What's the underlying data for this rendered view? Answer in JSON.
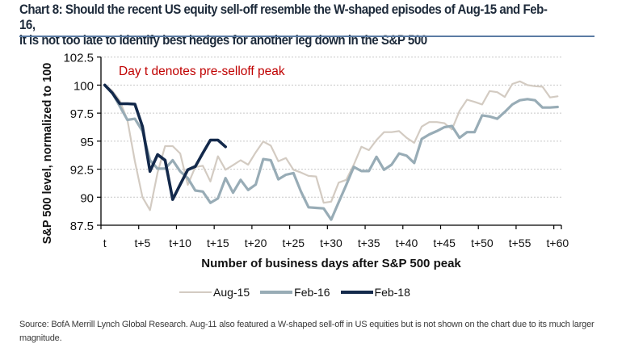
{
  "title": {
    "line1": "Chart 8: Should the recent US equity sell-off resemble the W-shaped episodes of Aug-15 and Feb-16,",
    "line2": "it is not too late to identify best hedges for another leg down in the S&P 500"
  },
  "source": "Source: BofA Merrill Lynch Global Research.  Aug-11 also featured a W-shaped sell-off in US equities but is not shown on the chart due to its much larger magnitude.",
  "colors": {
    "aug15": "#d3cbc2",
    "feb16": "#98acb6",
    "feb18": "#13294b",
    "annotation": "#c00000",
    "title_rule": "#5b7ba3"
  },
  "chart_data": {
    "type": "line",
    "title": "Chart 8: Should the recent US equity sell-off resemble the W-shaped episodes of Aug-15 and Feb-16, it is not too late to identify best hedges for another leg down in the S&P 500",
    "xlabel": "Number of business days after S&P 500 peak",
    "ylabel": "S&P 500 level, normalized to 100",
    "ylim": [
      87.5,
      102.5
    ],
    "yticks": [
      87.5,
      90,
      92.5,
      95,
      97.5,
      100,
      102.5
    ],
    "ytick_labels": [
      "87.5",
      "90",
      "92.5",
      "95",
      "97.5",
      "100",
      "102.5"
    ],
    "x_days": 61,
    "xtick_positions": [
      0,
      5,
      10,
      15,
      20,
      25,
      30,
      35,
      40,
      45,
      50,
      55,
      60
    ],
    "xtick_labels": [
      "t",
      "t+5",
      "t+10",
      "t+15",
      "t+20",
      "t+25",
      "t+30",
      "t+35",
      "t+40",
      "t+45",
      "t+50",
      "t+55",
      "t+60"
    ],
    "grid": "horizontal dotted",
    "legend_position": "bottom",
    "annotation": "Day t denotes pre-selloff peak",
    "series": [
      {
        "name": "Aug-15",
        "values": [
          100,
          99.5,
          98.6,
          96.9,
          93.2,
          90.0,
          88.85,
          92.2,
          94.56,
          94.56,
          93.9,
          91.1,
          92.7,
          92.8,
          91.4,
          93.65,
          92.45,
          92.86,
          93.3,
          92.9,
          94.0,
          94.97,
          94.6,
          93.2,
          93.5,
          92.45,
          92.2,
          91.9,
          91.85,
          89.5,
          89.6,
          91.3,
          91.55,
          92.9,
          94.5,
          94.2,
          95.1,
          95.8,
          95.8,
          95.9,
          95.3,
          94.85,
          96.3,
          96.7,
          96.7,
          96.6,
          96.05,
          97.7,
          98.7,
          98.5,
          98.27,
          99.47,
          99.37,
          98.94,
          100.1,
          100.33,
          100.0,
          99.9,
          99.86,
          98.9,
          99.0
        ]
      },
      {
        "name": "Feb-16",
        "values": [
          100,
          99.3,
          98.1,
          96.9,
          97.0,
          95.9,
          93.3,
          92.55,
          92.55,
          93.3,
          92.3,
          91.7,
          90.6,
          90.5,
          89.5,
          89.9,
          91.7,
          90.4,
          91.55,
          90.65,
          91.13,
          93.4,
          93.3,
          91.6,
          92.0,
          92.15,
          90.5,
          89.1,
          89.05,
          89.0,
          88.0,
          89.55,
          91.1,
          92.7,
          92.33,
          92.33,
          93.6,
          92.45,
          92.9,
          93.9,
          93.7,
          93.05,
          95.2,
          95.6,
          95.9,
          96.25,
          96.35,
          95.3,
          95.8,
          95.8,
          97.3,
          97.2,
          97.0,
          97.6,
          98.27,
          98.65,
          98.75,
          98.65,
          98.0,
          98.0,
          98.05
        ]
      },
      {
        "name": "Feb-18",
        "values": [
          100,
          99.3,
          98.34,
          98.34,
          98.3,
          96.3,
          92.3,
          93.8,
          93.3,
          89.8,
          91.13,
          92.45,
          92.74,
          93.94,
          95.1,
          95.1,
          94.5
        ]
      }
    ]
  }
}
